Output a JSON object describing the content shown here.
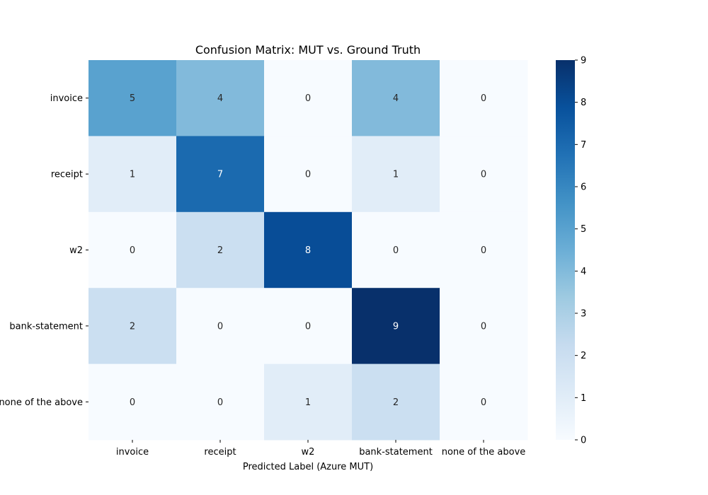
{
  "chart_data": {
    "type": "heatmap",
    "title": "Confusion Matrix: MUT vs. Ground Truth",
    "xlabel": "Predicted Label (Azure MUT)",
    "ylabel": "",
    "x_categories": [
      "invoice",
      "receipt",
      "w2",
      "bank-statement",
      "none of the above"
    ],
    "y_categories": [
      "invoice",
      "receipt",
      "w2",
      "bank-statement",
      "none of the above"
    ],
    "values": [
      [
        5,
        4,
        0,
        4,
        0
      ],
      [
        1,
        7,
        0,
        1,
        0
      ],
      [
        0,
        2,
        8,
        0,
        0
      ],
      [
        2,
        0,
        0,
        9,
        0
      ],
      [
        0,
        0,
        1,
        2,
        0
      ]
    ],
    "colorbar": {
      "range": [
        0,
        9
      ],
      "ticks": [
        0,
        1,
        2,
        3,
        4,
        5,
        6,
        7,
        8,
        9
      ],
      "colormap": "Blues"
    },
    "grid": false
  }
}
